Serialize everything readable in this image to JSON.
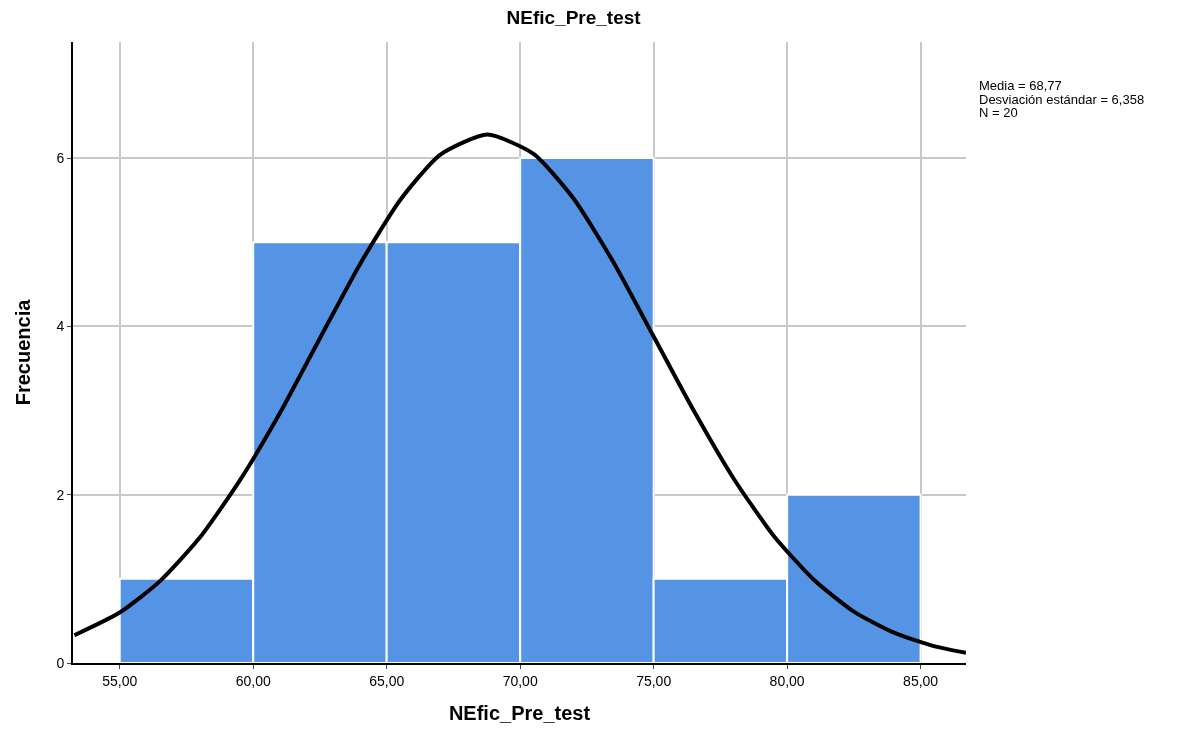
{
  "chart_data": {
    "type": "histogram",
    "title": "NEfic_Pre_test",
    "xlabel": "NEfic_Pre_test",
    "ylabel": "Frecuencia",
    "bins": [
      55,
      60,
      65,
      70,
      75,
      80,
      85
    ],
    "values": [
      1,
      5,
      5,
      6,
      1,
      2
    ],
    "color": "#5594e4",
    "series": [
      {
        "type": "line",
        "color": "#000000",
        "x": [
          53.3,
          55,
          56.5,
          58,
          59.5,
          61,
          62.5,
          64,
          65.5,
          67,
          68.77,
          70.5,
          72,
          73.5,
          75,
          76.5,
          78,
          79.5,
          81,
          82.5,
          84,
          85.5,
          86.7
        ],
        "values": [
          0.33,
          0.6,
          0.97,
          1.49,
          2.17,
          2.97,
          3.86,
          4.74,
          5.5,
          6.04,
          6.28,
          6.05,
          5.52,
          4.76,
          3.88,
          3.0,
          2.19,
          1.51,
          0.99,
          0.61,
          0.36,
          0.2,
          0.12
        ]
      }
    ],
    "xlim": [
      53.25,
      86.7
    ],
    "xticks": [
      {
        "value": 55,
        "label": "55,00"
      },
      {
        "value": 60,
        "label": "60,00"
      },
      {
        "value": 65,
        "label": "65,00"
      },
      {
        "value": 70,
        "label": "70,00"
      },
      {
        "value": 75,
        "label": "75,00"
      },
      {
        "value": 80,
        "label": "80,00"
      },
      {
        "value": 85,
        "label": "85,00"
      }
    ],
    "ylim": [
      0,
      7.38
    ],
    "yticks": [
      0,
      2,
      4,
      6
    ],
    "grid": true,
    "marker": "none",
    "line_style": "solid",
    "annotations": [
      "Media = 68,77",
      "Desviación estándar = 6,358",
      "N = 20"
    ]
  }
}
